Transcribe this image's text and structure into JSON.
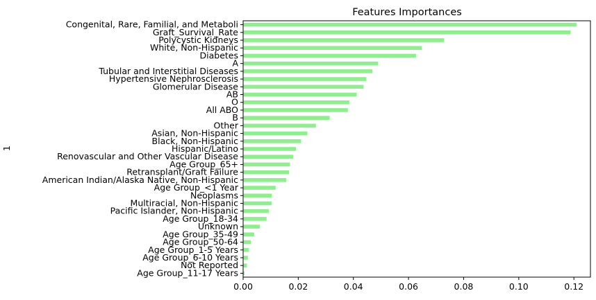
{
  "chart_data": {
    "type": "bar",
    "orientation": "horizontal",
    "title": "Features Importances",
    "xlabel": "",
    "ylabel": "1",
    "xlim": [
      0,
      0.126
    ],
    "xticks": [
      0.0,
      0.02,
      0.04,
      0.06,
      0.08,
      0.1,
      0.12
    ],
    "xtick_labels": [
      "0.00",
      "0.02",
      "0.04",
      "0.06",
      "0.08",
      "0.10",
      "0.12"
    ],
    "grid": false,
    "bar_color": "#90ee90",
    "categories": [
      "Congenital, Rare, Familial, and Metaboli",
      "Graft_Survival_Rate",
      "Polycystic Kidneys",
      "White, Non-Hispanic",
      "Diabetes",
      "A",
      "Tubular and Interstitial Diseases",
      "Hypertensive Nephrosclerosis",
      "Glomerular Disease",
      "AB",
      "O",
      "All ABO",
      "B",
      "Other",
      "Asian, Non-Hispanic",
      "Black, Non-Hispanic",
      "Hispanic/Latino",
      "Renovascular and Other Vascular Disease",
      "Age Group_65+",
      "Retransplant/Graft Failure",
      "American Indian/Alaska Native, Non-Hispanic",
      "Age Group_<1 Year",
      "Neoplasms",
      "Multiracial, Non-Hispanic",
      "Pacific Islander, Non-Hispanic",
      "Age Group_18-34",
      "Unknown",
      "Age Group_35-49",
      "Age Group_50-64",
      "Age Group_1-5 Years",
      "Age Group_6-10 Years",
      "Not Reported",
      "Age Group_11-17 Years"
    ],
    "values": [
      0.121,
      0.1188,
      0.0729,
      0.0648,
      0.0627,
      0.049,
      0.0469,
      0.0447,
      0.0437,
      0.0412,
      0.0385,
      0.038,
      0.0314,
      0.0264,
      0.0233,
      0.021,
      0.0192,
      0.0182,
      0.017,
      0.0167,
      0.0157,
      0.0118,
      0.0104,
      0.0103,
      0.0093,
      0.0085,
      0.0061,
      0.004,
      0.0028,
      0.0021,
      0.0017,
      0.0014,
      0.0005
    ]
  }
}
